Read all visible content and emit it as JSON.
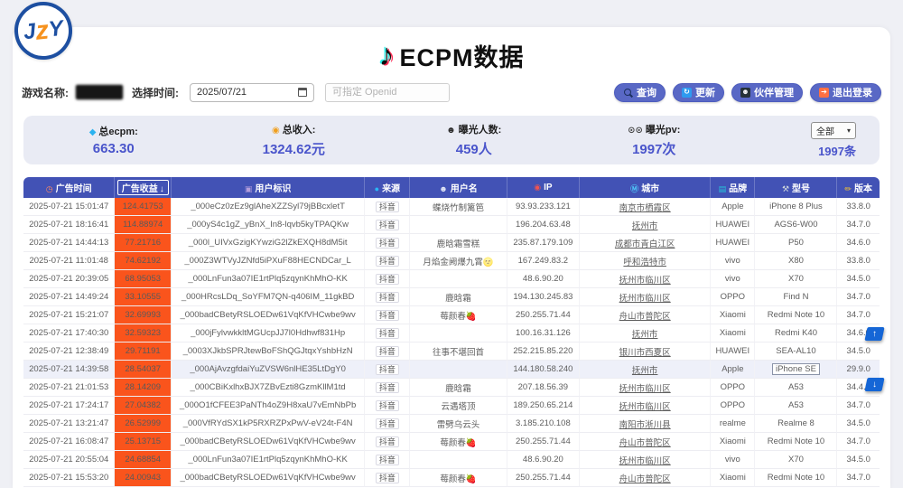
{
  "brand": {
    "letters": [
      "J",
      "z",
      "Y"
    ]
  },
  "title": {
    "text": "ECPM数据",
    "icon_glyph": "♪"
  },
  "filters": {
    "game_label": "游戏名称:",
    "game_value": "(已打码)",
    "date_label": "选择时间:",
    "date_value": "2025/07/21",
    "openid_placeholder": "可指定 Openid"
  },
  "actions": [
    {
      "id": "search",
      "label": "查询",
      "glyph": "",
      "icon_bg": ""
    },
    {
      "id": "refresh",
      "label": "更新",
      "glyph": "↻",
      "icon_bg": "#2e9af0"
    },
    {
      "id": "partner",
      "label": "伙伴管理",
      "glyph": "☻",
      "icon_bg": "#263238"
    },
    {
      "id": "logout",
      "label": "退出登录",
      "glyph": "➔",
      "icon_bg": "#ff7043"
    }
  ],
  "stats": [
    {
      "id": "ecpm",
      "glyph": "◆",
      "glyph_color": "#2bb3f0",
      "label": "总ecpm:",
      "value": "663.30"
    },
    {
      "id": "income",
      "glyph": "◉",
      "glyph_color": "#f0a020",
      "label": "总收入:",
      "value": "1324.62元"
    },
    {
      "id": "exposure",
      "glyph": "☻",
      "glyph_color": "#2b2b2b",
      "label": "曝光人数:",
      "value": "459人"
    },
    {
      "id": "pv",
      "glyph": "⊙⊙",
      "glyph_color": "#444444",
      "label": "曝光pv:",
      "value": "1997次"
    }
  ],
  "filter_select": {
    "value": "全部",
    "caret": "▾"
  },
  "total_count": "1997条",
  "table": {
    "columns": [
      {
        "key": "time",
        "label": "广告时间",
        "icon": "clock-icon",
        "glyph": "◷",
        "glyph_color": "#ff8a65",
        "width": "10.7%"
      },
      {
        "key": "revenue",
        "label": "广告收益",
        "icon": "sort-desc-icon",
        "glyph": "",
        "sorted": true,
        "sort_glyph": "↓",
        "width": "6.6%"
      },
      {
        "key": "openid",
        "label": "用户标识",
        "icon": "id-icon",
        "glyph": "▣",
        "glyph_color": "#b39ddb",
        "width": "22.6%"
      },
      {
        "key": "source",
        "label": "来源",
        "icon": "source-icon",
        "glyph": "●",
        "glyph_color": "#29b6f6",
        "width": "5.3%"
      },
      {
        "key": "username",
        "label": "用户名",
        "icon": "user-icon",
        "glyph": "☻",
        "glyph_color": "#e3e7f5",
        "width": "11.3%"
      },
      {
        "key": "ip",
        "label": "IP",
        "icon": "pin-icon",
        "glyph": "◉",
        "glyph_color": "#ef5350",
        "width": "8.5%"
      },
      {
        "key": "city",
        "label": "城市",
        "icon": "metro-icon",
        "glyph": "Ⓜ",
        "glyph_color": "#4fc3f7",
        "width": "15.3%"
      },
      {
        "key": "brand",
        "label": "品牌",
        "icon": "brand-icon",
        "glyph": "▤",
        "glyph_color": "#26c6da",
        "width": "5.2%"
      },
      {
        "key": "model",
        "label": "型号",
        "icon": "tools-icon",
        "glyph": "⚒",
        "glyph_color": "#cfd8dc",
        "width": "9.6%"
      },
      {
        "key": "version",
        "label": "版本",
        "icon": "pencil-icon",
        "glyph": "✏",
        "glyph_color": "#ffca28",
        "width": "4.9%"
      }
    ],
    "rows": [
      {
        "time": "2025-07-21 15:01:47",
        "revenue": "124.41753",
        "openid": "_000eCz0zEz9glAheXZZSyl79jBBcxletT",
        "source": "抖音",
        "username": "蝶烧竹制篱笆",
        "ip": "93.93.233.121",
        "city": "南京市栖霞区",
        "brand": "Apple",
        "model": "iPhone 8 Plus",
        "version": "33.8.0"
      },
      {
        "time": "2025-07-21 18:16:41",
        "revenue": "114.88974",
        "openid": "_000yS4c1gZ_yBnX_In8-lqvb5kyTPAQKw",
        "source": "抖音",
        "username": "",
        "ip": "196.204.63.48",
        "city": "抚州市",
        "brand": "HUAWEI",
        "model": "AGS6-W00",
        "version": "34.7.0"
      },
      {
        "time": "2025-07-21 14:44:13",
        "revenue": "77.21716",
        "openid": "_000l_UIVxGzigKYwziG2lZkEXQH8dM5it",
        "source": "抖音",
        "username": "鹿晗霜雪糕",
        "ip": "235.87.179.109",
        "city": "成都市青白江区",
        "brand": "HUAWEI",
        "model": "P50",
        "version": "34.6.0"
      },
      {
        "time": "2025-07-21 11:01:48",
        "revenue": "74.62192",
        "openid": "_000Z3WTVyJZNfd5iPXuF88HECNDCar_L",
        "source": "抖音",
        "username": "月焰金阙爆九霄🌝",
        "ip": "167.249.83.2",
        "city": "呼和浩特市",
        "brand": "vivo",
        "model": "X80",
        "version": "33.8.0"
      },
      {
        "time": "2025-07-21 20:39:05",
        "revenue": "68.95053",
        "openid": "_000LnFun3a07IE1rtPlq5zqynKhMhO-KK",
        "source": "抖音",
        "username": "",
        "ip": "48.6.90.20",
        "city": "抚州市临川区",
        "brand": "vivo",
        "model": "X70",
        "version": "34.5.0"
      },
      {
        "time": "2025-07-21 14:49:24",
        "revenue": "33.10555",
        "openid": "_000HRcsLDq_SoYFM7QN-q406IM_11gkBD",
        "source": "抖音",
        "username": "鹿晗霜",
        "ip": "194.130.245.83",
        "city": "抚州市临川区",
        "brand": "OPPO",
        "model": "Find N",
        "version": "34.7.0"
      },
      {
        "time": "2025-07-21 15:21:07",
        "revenue": "32.69993",
        "openid": "_000badCBetyRSLOEDw61VqKfVHCwbe9wv",
        "source": "抖音",
        "username": "莓颜春🍓",
        "ip": "250.255.71.44",
        "city": "舟山市普陀区",
        "brand": "Xiaomi",
        "model": "Redmi Note 10",
        "version": "34.7.0"
      },
      {
        "time": "2025-07-21 17:40:30",
        "revenue": "32.59323",
        "openid": "_000jFylvwkkltMGUcpJJ7l0Hdhwf831Hp",
        "source": "抖音",
        "username": "",
        "ip": "100.16.31.126",
        "city": "抚州市",
        "brand": "Xiaomi",
        "model": "Redmi K40",
        "version": "34.6.0"
      },
      {
        "time": "2025-07-21 12:38:49",
        "revenue": "29.71191",
        "openid": "_0003XJkbSPRJtewBoFShQGJtqxYshbHzN",
        "source": "抖音",
        "username": "往事不堪回首",
        "ip": "252.215.85.220",
        "city": "银川市西夏区",
        "brand": "HUAWEI",
        "model": "SEA-AL10",
        "version": "34.5.0"
      },
      {
        "time": "2025-07-21 14:39:58",
        "revenue": "28.54037",
        "openid": "_000AjAvzgfdaiYuZVSW6nlHE35LtDgY0",
        "source": "抖音",
        "username": "",
        "ip": "144.180.58.240",
        "city": "抚州市",
        "brand": "Apple",
        "model": "iPhone SE",
        "version": "29.9.0",
        "highlight": true,
        "model_boxed": true
      },
      {
        "time": "2025-07-21 21:01:53",
        "revenue": "28.14209",
        "openid": "_000CBiKxlhxBJX7ZBvEzti8GzmKllM1td",
        "source": "抖音",
        "username": "鹿晗霜",
        "ip": "207.18.56.39",
        "city": "抚州市临川区",
        "brand": "OPPO",
        "model": "A53",
        "version": "34.4.0"
      },
      {
        "time": "2025-07-21 17:24:17",
        "revenue": "27.04382",
        "openid": "_000O1fCFEE3PaNTh4oZ9H8xaU7vEmNbPb",
        "source": "抖音",
        "username": "云遇塔顶",
        "ip": "189.250.65.214",
        "city": "抚州市临川区",
        "brand": "OPPO",
        "model": "A53",
        "version": "34.7.0"
      },
      {
        "time": "2025-07-21 13:21:47",
        "revenue": "26.52999",
        "openid": "_000VfRYdSX1kP5RXRZPxPwV-eV24t-F4N",
        "source": "抖音",
        "username": "雷劈乌云头",
        "ip": "3.185.210.108",
        "city": "南阳市淅川县",
        "brand": "realme",
        "model": "Realme 8",
        "version": "34.5.0"
      },
      {
        "time": "2025-07-21 16:08:47",
        "revenue": "25.13715",
        "openid": "_000badCBetyRSLOEDw61VqKfVHCwbe9wv",
        "source": "抖音",
        "username": "莓颜春🍓",
        "ip": "250.255.71.44",
        "city": "舟山市普陀区",
        "brand": "Xiaomi",
        "model": "Redmi Note 10",
        "version": "34.7.0"
      },
      {
        "time": "2025-07-21 20:55:04",
        "revenue": "24.68854",
        "openid": "_000LnFun3a07IE1rtPlq5zqynKhMhO-KK",
        "source": "抖音",
        "username": "",
        "ip": "48.6.90.20",
        "city": "抚州市临川区",
        "brand": "vivo",
        "model": "X70",
        "version": "34.5.0"
      },
      {
        "time": "2025-07-21 15:53:20",
        "revenue": "24.00943",
        "openid": "_000badCBetyRSLOEDw61VqKfVHCwbe9wv",
        "source": "抖音",
        "username": "莓颜春🍓",
        "ip": "250.255.71.44",
        "city": "舟山市普陀区",
        "brand": "Xiaomi",
        "model": "Redmi Note 10",
        "version": "34.7.0"
      }
    ]
  },
  "float_buttons": [
    {
      "name": "scroll-top-button",
      "icon": "arrow-up-icon",
      "glyph": "↑"
    },
    {
      "name": "scroll-bottom-button",
      "icon": "arrow-down-icon",
      "glyph": "↓"
    }
  ],
  "colors": {
    "accent_indigo": "#4252b5",
    "button_indigo": "#5968c5",
    "revenue_orange": "#fa541c",
    "stat_value_purple": "#4a55cb",
    "stats_bar_bg": "#e9ebf4",
    "page_bg": "#eff0f5",
    "float_blue": "#1566d6"
  }
}
